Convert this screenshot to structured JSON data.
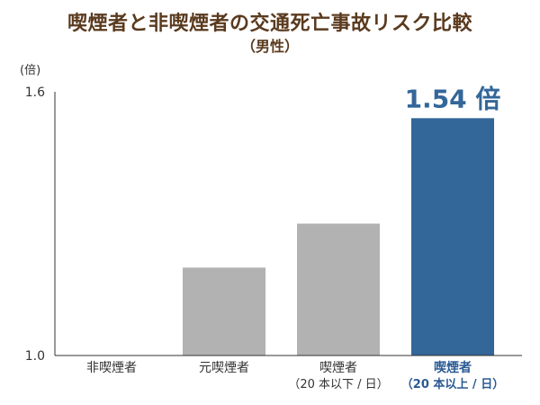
{
  "chart_data": {
    "type": "bar",
    "title": "喫煙者と非喫煙者の交通死亡事故リスク比較",
    "subtitle": "（男性）",
    "ylabel": "(倍)",
    "ylim": [
      1.0,
      1.6
    ],
    "yticks": [
      "1.0",
      "1.6"
    ],
    "grid": false,
    "categories": [
      {
        "label": "非喫煙者",
        "sublabel": ""
      },
      {
        "label": "元喫煙者",
        "sublabel": ""
      },
      {
        "label": "喫煙者",
        "sublabel": "（20 本以下 / 日）"
      },
      {
        "label": "喫煙者",
        "sublabel": "（20 本以上 / 日）"
      }
    ],
    "values": [
      1.0,
      1.2,
      1.3,
      1.54
    ],
    "colors": [
      "#b2b2b2",
      "#b2b2b2",
      "#b2b2b2",
      "#336699"
    ],
    "highlight_index": 3,
    "highlight_label_color": "#2a5a92",
    "data_labels": [
      "",
      "",
      "",
      "1.54 倍"
    ]
  }
}
